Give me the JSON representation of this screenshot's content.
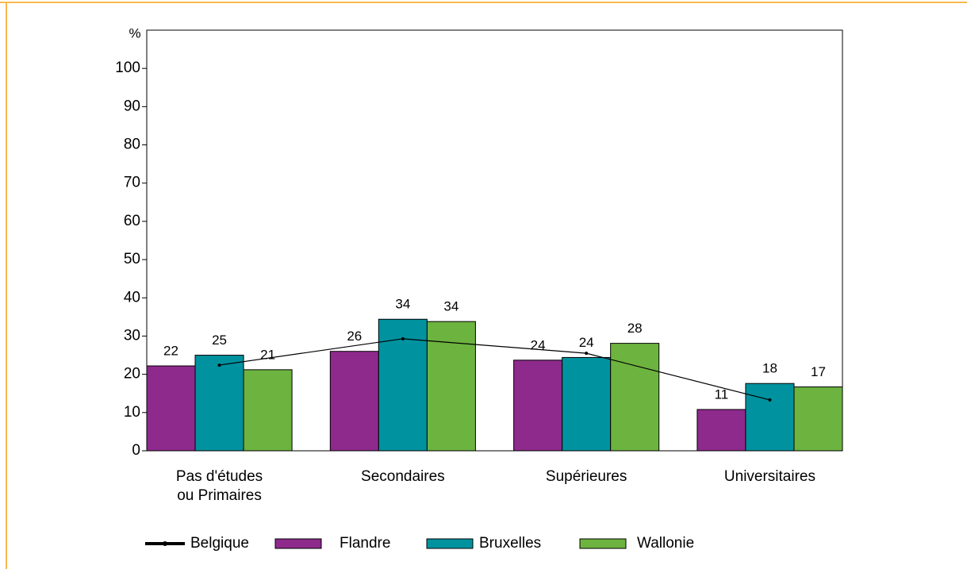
{
  "chart_data": {
    "type": "bar",
    "y_label": "%",
    "categories": [
      "Pas d'études\nou Primaires",
      "Secondaires",
      "Supérieures",
      "Universitaires"
    ],
    "series": [
      {
        "name": "Belgique",
        "type": "line",
        "color": "#000000",
        "values": [
          22.4,
          29.3,
          25.5,
          13.3
        ]
      },
      {
        "name": "Flandre",
        "color": "#8e2a8c",
        "values": [
          22.2,
          26.0,
          23.7,
          10.8
        ],
        "value_labels": [
          "22",
          "26",
          "24",
          "11"
        ]
      },
      {
        "name": "Bruxelles",
        "color": "#00929f",
        "values": [
          25.0,
          34.4,
          24.4,
          17.6
        ],
        "value_labels": [
          "25",
          "34",
          "24",
          "18"
        ]
      },
      {
        "name": "Wallonie",
        "color": "#6db33f",
        "values": [
          21.2,
          33.8,
          28.1,
          16.7
        ],
        "value_labels": [
          "21",
          "34",
          "28",
          "17"
        ]
      }
    ],
    "ylim": [
      0,
      110
    ],
    "yticks": [
      0,
      10,
      20,
      30,
      40,
      50,
      60,
      70,
      80,
      90,
      100
    ],
    "legend": "bottom"
  }
}
